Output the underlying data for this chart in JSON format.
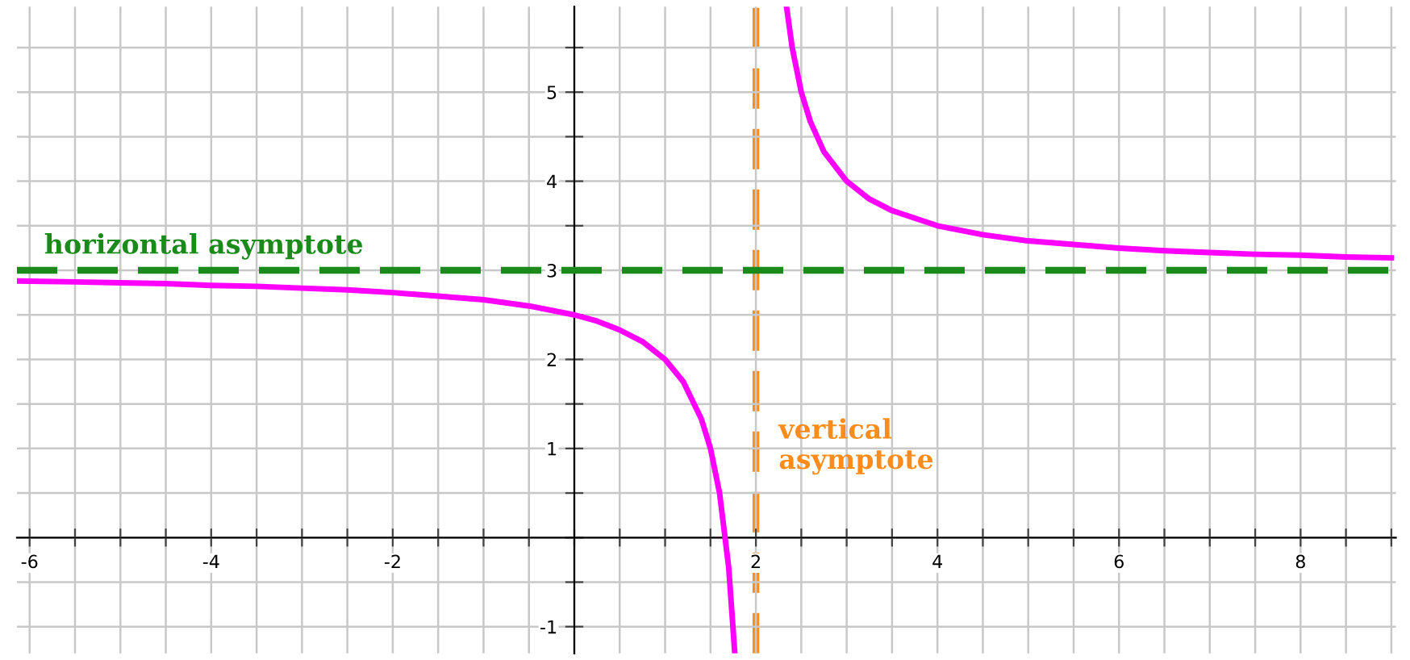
{
  "chart_data": {
    "type": "line",
    "xlim": [
      -6.14,
      9.05
    ],
    "ylim": [
      -1.3,
      5.96
    ],
    "xticks": [
      {
        "value": -6,
        "label": "-6"
      },
      {
        "value": -5.5,
        "label": null
      },
      {
        "value": -5,
        "label": null
      },
      {
        "value": -4.5,
        "label": null
      },
      {
        "value": -4,
        "label": "-4"
      },
      {
        "value": -3.5,
        "label": null
      },
      {
        "value": -3,
        "label": null
      },
      {
        "value": -2.5,
        "label": null
      },
      {
        "value": -2,
        "label": "-2"
      },
      {
        "value": -1.5,
        "label": null
      },
      {
        "value": -1,
        "label": null
      },
      {
        "value": -0.5,
        "label": null
      },
      {
        "value": 0,
        "label": null
      },
      {
        "value": 0.5,
        "label": null
      },
      {
        "value": 1,
        "label": null
      },
      {
        "value": 1.5,
        "label": null
      },
      {
        "value": 2,
        "label": "2"
      },
      {
        "value": 2.5,
        "label": null
      },
      {
        "value": 3,
        "label": null
      },
      {
        "value": 3.5,
        "label": null
      },
      {
        "value": 4,
        "label": "4"
      },
      {
        "value": 4.5,
        "label": null
      },
      {
        "value": 5,
        "label": null
      },
      {
        "value": 5.5,
        "label": null
      },
      {
        "value": 6,
        "label": "6"
      },
      {
        "value": 6.5,
        "label": null
      },
      {
        "value": 7,
        "label": null
      },
      {
        "value": 7.5,
        "label": null
      },
      {
        "value": 8,
        "label": "8"
      },
      {
        "value": 8.5,
        "label": null
      },
      {
        "value": 9,
        "label": null
      }
    ],
    "yticks": [
      {
        "value": -1,
        "label": "-1"
      },
      {
        "value": -0.5,
        "label": null
      },
      {
        "value": 0,
        "label": null
      },
      {
        "value": 0.5,
        "label": null
      },
      {
        "value": 1,
        "label": "1"
      },
      {
        "value": 1.5,
        "label": null
      },
      {
        "value": 2,
        "label": "2"
      },
      {
        "value": 2.5,
        "label": null
      },
      {
        "value": 3,
        "label": "3"
      },
      {
        "value": 3.5,
        "label": null
      },
      {
        "value": 4,
        "label": "4"
      },
      {
        "value": 4.5,
        "label": null
      },
      {
        "value": 5,
        "label": "5"
      },
      {
        "value": 5.5,
        "label": null
      }
    ],
    "grid": true,
    "marker": "none",
    "line_style": "solid",
    "series": [
      {
        "color": "#ff00ff",
        "x": [
          -6.14,
          -5.5,
          -5,
          -4.5,
          -4,
          -3.5,
          -3,
          -2.5,
          -2,
          -1.5,
          -1,
          -0.5,
          0,
          0.25,
          0.5,
          0.75,
          1,
          1.2,
          1.4,
          1.5,
          1.6,
          1.7,
          1.767
        ],
        "values": [
          2.88,
          2.87,
          2.86,
          2.85,
          2.83,
          2.82,
          2.8,
          2.78,
          2.75,
          2.71,
          2.67,
          2.6,
          2.5,
          2.43,
          2.33,
          2.2,
          2,
          1.75,
          1.33,
          1,
          0.5,
          -0.33,
          -1.29
        ]
      },
      {
        "color": "#ff00ff",
        "x": [
          2.34,
          2.4,
          2.5,
          2.6,
          2.75,
          3,
          3.25,
          3.5,
          4,
          4.5,
          5,
          5.5,
          6,
          6.5,
          7,
          7.5,
          8,
          8.5,
          9
        ],
        "values": [
          5.94,
          5.5,
          5,
          4.67,
          4.33,
          4,
          3.8,
          3.67,
          3.5,
          3.4,
          3.33,
          3.29,
          3.25,
          3.22,
          3.2,
          3.18,
          3.17,
          3.15,
          3.14
        ]
      }
    ],
    "ref_lines": [
      {
        "axis": "y",
        "value": 3,
        "label": "horizontal asymptote",
        "color": "#1a8a1a",
        "line_style": "dashed"
      },
      {
        "axis": "x",
        "value": 2,
        "label": "vertical\nasymptote",
        "color": "#ff8c1a",
        "line_style": "dashed"
      }
    ]
  }
}
